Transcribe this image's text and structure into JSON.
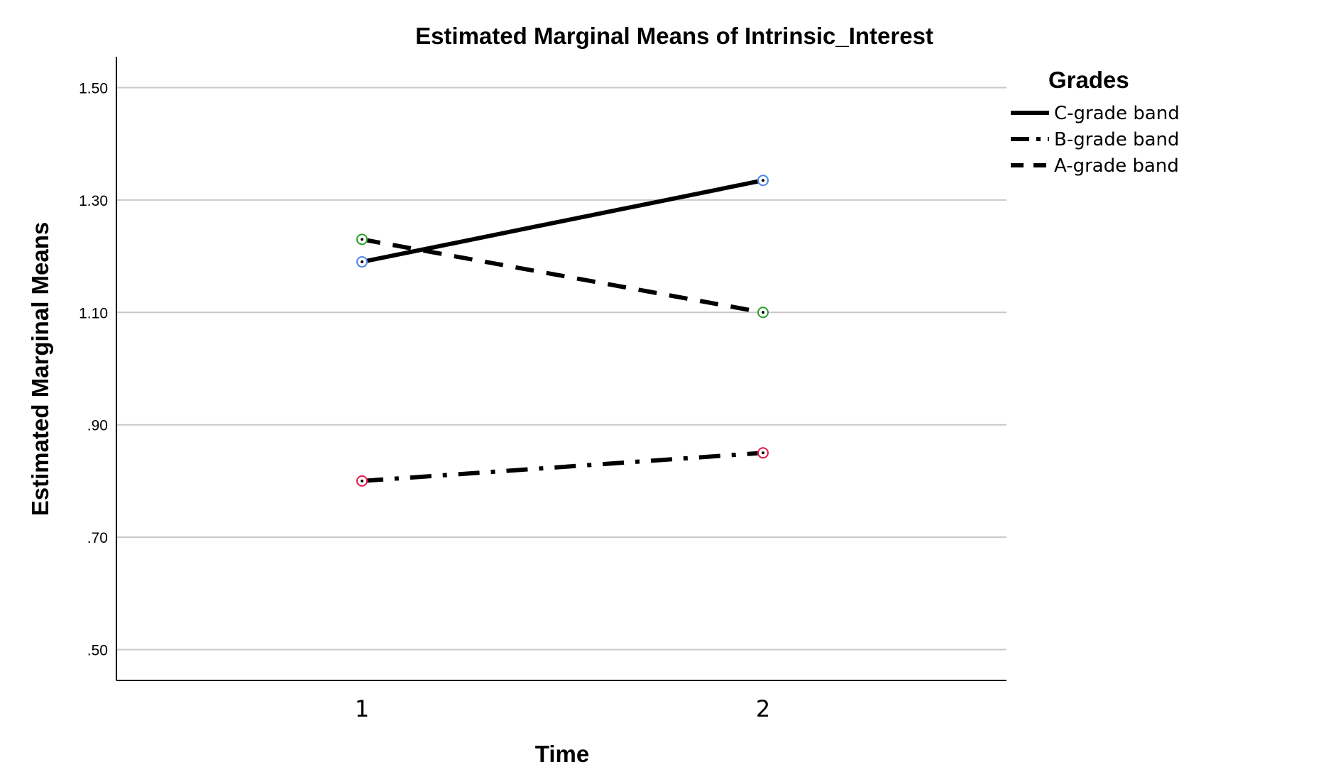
{
  "chart_data": {
    "type": "line",
    "title": "Estimated Marginal Means of Intrinsic_Interest",
    "xlabel": "Time",
    "ylabel": "Estimated Marginal Means",
    "categories": [
      "1",
      "2"
    ],
    "y_ticks": [
      ".50",
      ".70",
      ".90",
      "1.10",
      "1.30",
      "1.50"
    ],
    "y_tick_values": [
      0.5,
      0.7,
      0.9,
      1.1,
      1.3,
      1.5
    ],
    "ylim": [
      0.445,
      1.555
    ],
    "grid": true,
    "legend": {
      "title": "Grades",
      "position": "top-right"
    },
    "series": [
      {
        "name": "C-grade band",
        "values": [
          1.19,
          1.335
        ],
        "line_style": "solid",
        "marker_color": "#4a86e8"
      },
      {
        "name": "B-grade band",
        "values": [
          0.8,
          0.85
        ],
        "line_style": "dash-dot",
        "marker_color": "#e6194b"
      },
      {
        "name": "A-grade band",
        "values": [
          1.23,
          1.1
        ],
        "line_style": "dashed",
        "marker_color": "#2ca02c"
      }
    ],
    "colors": {
      "line": "#000000",
      "grid": "#c8c8c8",
      "axis": "#000000",
      "background": "#ffffff"
    }
  }
}
